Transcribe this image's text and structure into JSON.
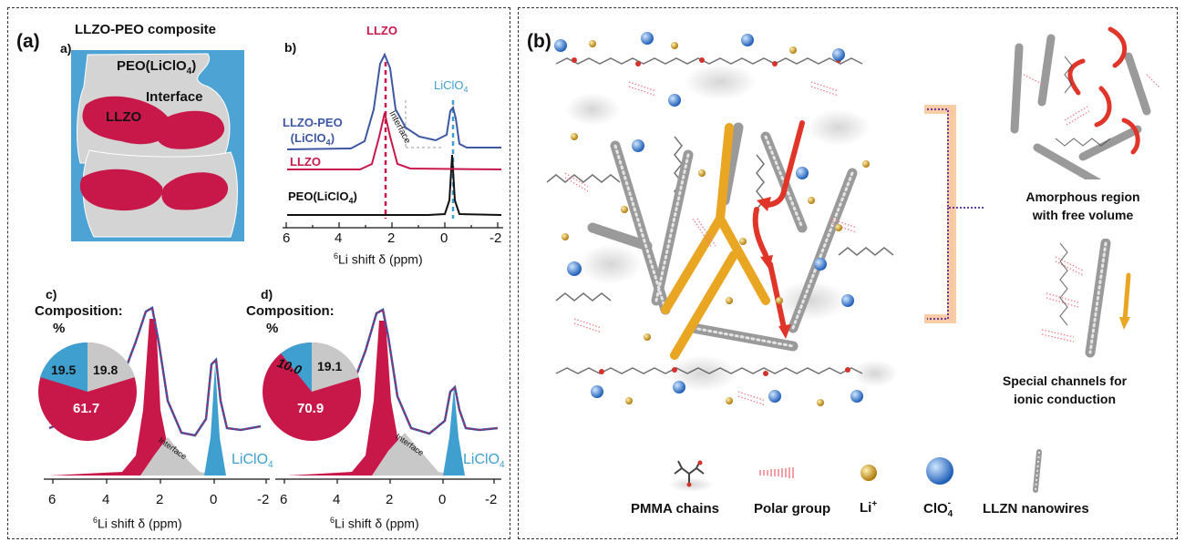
{
  "panel_a": {
    "tag": "(a)",
    "sub_a": {
      "letter": "a)",
      "title": "LLZO-PEO composite",
      "peo_label": "PEO(LiClO",
      "peo_sub": "4",
      "peo_close": ")",
      "interface_label": "Interface",
      "llzo_label": "LLZO"
    },
    "sub_b": {
      "letter": "b)",
      "top_label": "LLZO",
      "liclo_label": "LiClO",
      "liclo_sub": "4",
      "interface_label": "Interface",
      "trace1_line1": "LLZO-PEO",
      "trace1_line2": "(LiClO",
      "trace1_sub": "4",
      "trace1_close": ")",
      "trace2": "LLZO",
      "trace3": "PEO(LiClO",
      "trace3_sub": "4",
      "trace3_close": ")",
      "ticks": [
        "6",
        "4",
        "2",
        "0",
        "-2"
      ],
      "xlabel_sup": "6",
      "xlabel": "Li shift δ (ppm)"
    },
    "sub_c": {
      "letter": "c)",
      "comp": "Composition:",
      "pct": "%",
      "slices": [
        "19.5",
        "19.8",
        "61.7"
      ],
      "interface_label": "Interface",
      "liclo_label": "LiClO",
      "liclo_sub": "4",
      "ticks": [
        "6",
        "4",
        "2",
        "0",
        "-2"
      ],
      "xlabel_sup": "6",
      "xlabel": "Li shift δ (ppm)"
    },
    "sub_d": {
      "letter": "d)",
      "comp": "Composition:",
      "pct": "%",
      "slices": [
        "10.0",
        "19.1",
        "70.9"
      ],
      "interface_label": "Interface",
      "liclo_label": "LiClO",
      "liclo_sub": "4",
      "ticks": [
        "6",
        "4",
        "2",
        "0",
        "-2"
      ],
      "xlabel_sup": "6",
      "xlabel": "Li shift δ (ppm)"
    }
  },
  "panel_b": {
    "tag": "(b)",
    "amorphous_line1": "Amorphous region",
    "amorphous_line2": "with free volume",
    "channels_line1": "Special channels for",
    "channels_line2": "ionic conduction",
    "legend": {
      "pmma": "PMMA chains",
      "polar": "Polar group",
      "li": "Li",
      "li_sup": "+",
      "clo": "ClO",
      "clo_sub": "4",
      "clo_sup": "-",
      "llzn": "LLZN nanowires"
    }
  },
  "colors": {
    "llzo_red": "#c8184a",
    "liclo_blue": "#3fa0cf",
    "peo_blue": "#4da3d4",
    "trace_navy": "#3d57a3",
    "interface_gray": "#c8c8c8",
    "nanowire_gold": "#e9a623",
    "arrow_red": "#e0362a",
    "bracket_orange": "#f4a460",
    "bracket_purple": "#6a3aa0"
  }
}
